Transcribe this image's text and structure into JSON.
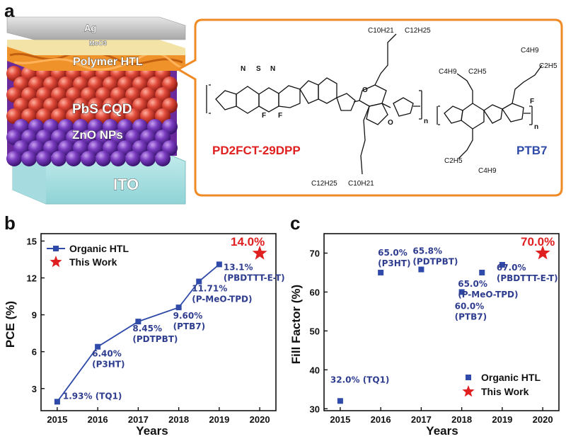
{
  "panel_a": {
    "letter": "a",
    "layers": [
      "Ag",
      "MoO3",
      "Polymer HTL",
      "PbS CQD",
      "ZnO NPs",
      "ITO"
    ],
    "chem": {
      "polymer1_name": "PD2FCT-29DPP",
      "polymer2_name": "PTB7",
      "top_chain": "C10H21",
      "top_chain2": "C12H25",
      "bottom_chain": "C12H25",
      "bottom_chain2": "C10H21",
      "ptb7_top_a": "C4H9",
      "ptb7_top_b": "C2H5",
      "ptb7_left_a": "C4H9",
      "ptb7_left_b": "C2H5",
      "ptb7_bottom_a": "C2H5",
      "ptb7_bottom_b": "C4H9",
      "atom_F": "F",
      "atom_S": "S",
      "atom_N": "N",
      "atom_O": "O",
      "repeat_n": "n"
    }
  },
  "panel_b": {
    "letter": "b",
    "legend": {
      "organic": "Organic HTL",
      "this_work": "This Work"
    },
    "star_label": "14.0%",
    "annotations": [
      {
        "line1": "1.93%  (TQ1)",
        "line2": ""
      },
      {
        "line1": "6.40%",
        "line2": "(P3HT)"
      },
      {
        "line1": "8.45%",
        "line2": "(PDTPBT)"
      },
      {
        "line1": "9.60%",
        "line2": "(PTB7)"
      },
      {
        "line1": "11.71%",
        "line2": "(P-MeO-TPD)"
      },
      {
        "line1": "13.1%",
        "line2": "(PBDTTT-E-T)"
      }
    ]
  },
  "panel_c": {
    "letter": "c",
    "legend": {
      "organic": "Organic HTL",
      "this_work": "This Work"
    },
    "star_label": "70.0%",
    "annotations": [
      {
        "line1": "32.0%  (TQ1)",
        "line2": ""
      },
      {
        "line1": "65.0%",
        "line2": "(P3HT)"
      },
      {
        "line1": "65.8%",
        "line2": "(PDTPBT)"
      },
      {
        "line1": "60.0%",
        "line2": "(PTB7)"
      },
      {
        "line1": "65.0%",
        "line2": "(P-MeO-TPD)"
      },
      {
        "line1": "67.0%",
        "line2": "(PBDTTT-E-T)"
      }
    ]
  },
  "colors": {
    "series": "#2f4aa8",
    "star": "#e02020",
    "annotation": "#2f3d8f",
    "callout_border": "#f08a24"
  },
  "chart_data": [
    {
      "type": "line",
      "xlabel": "Years",
      "ylabel": "PCE (%)",
      "xticks": [
        2015,
        2016,
        2017,
        2018,
        2019,
        2020
      ],
      "yticks": [
        3,
        6,
        9,
        12,
        15
      ],
      "xlim": [
        2014.6,
        2020.4
      ],
      "ylim": [
        1.2,
        15.6
      ],
      "legend_position": "top-left",
      "series": [
        {
          "name": "Organic HTL",
          "marker": "square",
          "line": true,
          "x": [
            2015,
            2016,
            2017,
            2018,
            2018.5,
            2019
          ],
          "y": [
            1.93,
            6.4,
            8.45,
            9.6,
            11.71,
            13.1
          ]
        },
        {
          "name": "This Work",
          "marker": "star",
          "line": false,
          "x": [
            2020
          ],
          "y": [
            14.0
          ]
        }
      ]
    },
    {
      "type": "scatter",
      "xlabel": "Years",
      "ylabel": "Fill Factor (%)",
      "xticks": [
        2015,
        2016,
        2017,
        2018,
        2019,
        2020
      ],
      "yticks": [
        30,
        40,
        50,
        60,
        70
      ],
      "xlim": [
        2014.6,
        2020.4
      ],
      "ylim": [
        29.5,
        75
      ],
      "legend_position": "bottom-right",
      "series": [
        {
          "name": "Organic HTL",
          "marker": "square",
          "line": false,
          "x": [
            2015,
            2016,
            2017,
            2018,
            2018.5,
            2019
          ],
          "y": [
            32.0,
            65.0,
            65.8,
            60.0,
            65.0,
            67.0
          ]
        },
        {
          "name": "This Work",
          "marker": "star",
          "line": false,
          "x": [
            2020
          ],
          "y": [
            70.0
          ]
        }
      ]
    }
  ]
}
